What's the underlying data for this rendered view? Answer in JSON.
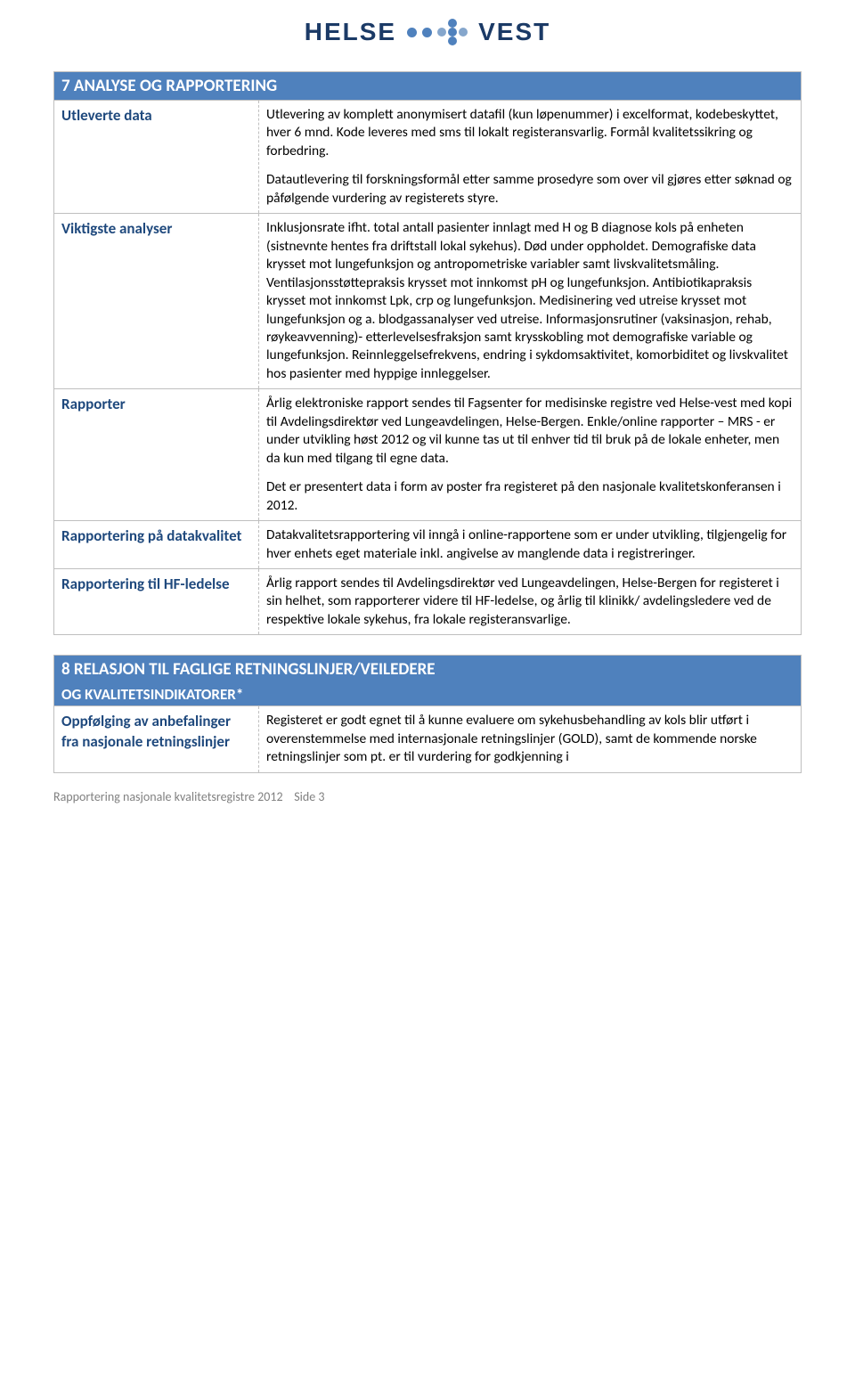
{
  "logo": {
    "left": "HELSE",
    "right": "VEST"
  },
  "section7": {
    "title": "7 ANALYSE OG RAPPORTERING",
    "rows": [
      {
        "label": "Utleverte data",
        "p1": "Utlevering av komplett anonymisert datafil (kun løpenummer) i excelformat, kodebeskyttet, hver 6 mnd. Kode leveres med sms til lokalt registeransvarlig. Formål kvalitetssikring og forbedring.",
        "p2": "Datautlevering til forskningsformål etter samme prosedyre som over vil gjøres etter søknad og påfølgende vurdering av registerets styre."
      },
      {
        "label": "Viktigste analyser",
        "p1": "Inklusjonsrate ifht. total antall pasienter innlagt med H og B diagnose kols på enheten (sistnevnte hentes fra driftstall lokal sykehus). Død under oppholdet. Demografiske data krysset mot lungefunksjon og antropometriske variabler samt livskvalitetsmåling. Ventilasjonsstøttepraksis krysset mot innkomst pH og lungefunksjon. Antibiotikapraksis krysset mot innkomst Lpk, crp og lungefunksjon. Medisinering ved utreise krysset mot lungefunksjon og a. blodgassanalyser ved utreise. Informasjonsrutiner (vaksinasjon, rehab, røykeavvenning)- etterlevelsesfraksjon samt krysskobling mot demografiske variable og lungefunksjon. Reinnleggelsefrekvens, endring i sykdomsaktivitet, komorbiditet og livskvalitet hos pasienter med hyppige innleggelser."
      },
      {
        "label": "Rapporter",
        "p1": "Årlig elektroniske rapport sendes til Fagsenter for medisinske registre ved Helse-vest med kopi til Avdelingsdirektør ved Lungeavdelingen, Helse-Bergen. Enkle/online rapporter – MRS - er under utvikling høst 2012 og vil kunne tas ut til enhver tid til bruk på de lokale enheter, men da kun med tilgang til egne data.",
        "p2": "Det er presentert data i form av poster fra registeret på den nasjonale kvalitetskonferansen i 2012."
      },
      {
        "label": "Rapportering på datakvalitet",
        "p1": "Datakvalitetsrapportering vil inngå i online-rapportene som er under utvikling, tilgjengelig for hver enhets eget materiale inkl. angivelse av manglende data i registreringer."
      },
      {
        "label": "Rapportering til HF-ledelse",
        "p1": "Årlig rapport sendes til Avdelingsdirektør ved Lungeavdelingen, Helse-Bergen for registeret i sin helhet, som rapporterer videre til HF-ledelse, og årlig til klinikk/ avdelingsledere ved de respektive lokale sykehus, fra lokale registeransvarlige."
      }
    ]
  },
  "section8": {
    "title": "8 RELASJON TIL FAGLIGE RETNINGSLINJER/VEILEDERE",
    "subtitle": "OG KVALITETSINDIKATORER*",
    "rows": [
      {
        "label": "Oppfølging av anbefalinger fra nasjonale retningslinjer",
        "p1": "Registeret er godt egnet til å kunne evaluere om sykehusbehandling av kols blir utført i overenstemmelse med internasjonale retningslinjer (GOLD), samt de kommende norske retningslinjer som pt.  er til vurdering for godkjenning i"
      }
    ]
  },
  "footer": {
    "text": "Rapportering nasjonale kvalitetsregistre 2012",
    "side_label": "Side",
    "page": "3"
  },
  "colors": {
    "header_bg": "#4f81bd",
    "header_text": "#ffffff",
    "left_label": "#1f497d",
    "border": "#bfbfbf",
    "footer": "#808080",
    "logo_text": "#1b3a66",
    "dot": "#4f81bd"
  }
}
